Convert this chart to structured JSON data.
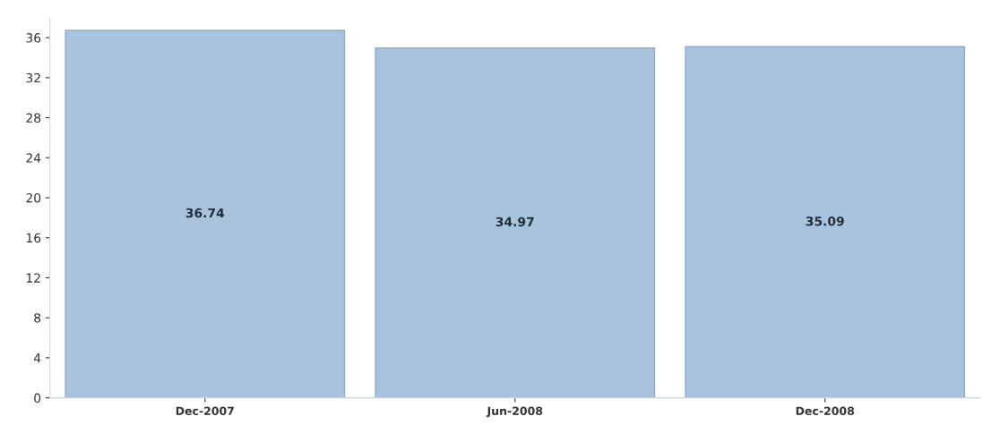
{
  "chart_data": {
    "type": "bar",
    "categories": [
      "Dec-2007",
      "Jun-2008",
      "Dec-2008"
    ],
    "values": [
      36.74,
      34.97,
      35.09
    ],
    "color": "#a9c3df",
    "ylim": [
      0,
      38
    ],
    "yticks": [
      0,
      4,
      8,
      12,
      16,
      20,
      24,
      28,
      32,
      36
    ],
    "data_labels": true,
    "grid": false
  }
}
